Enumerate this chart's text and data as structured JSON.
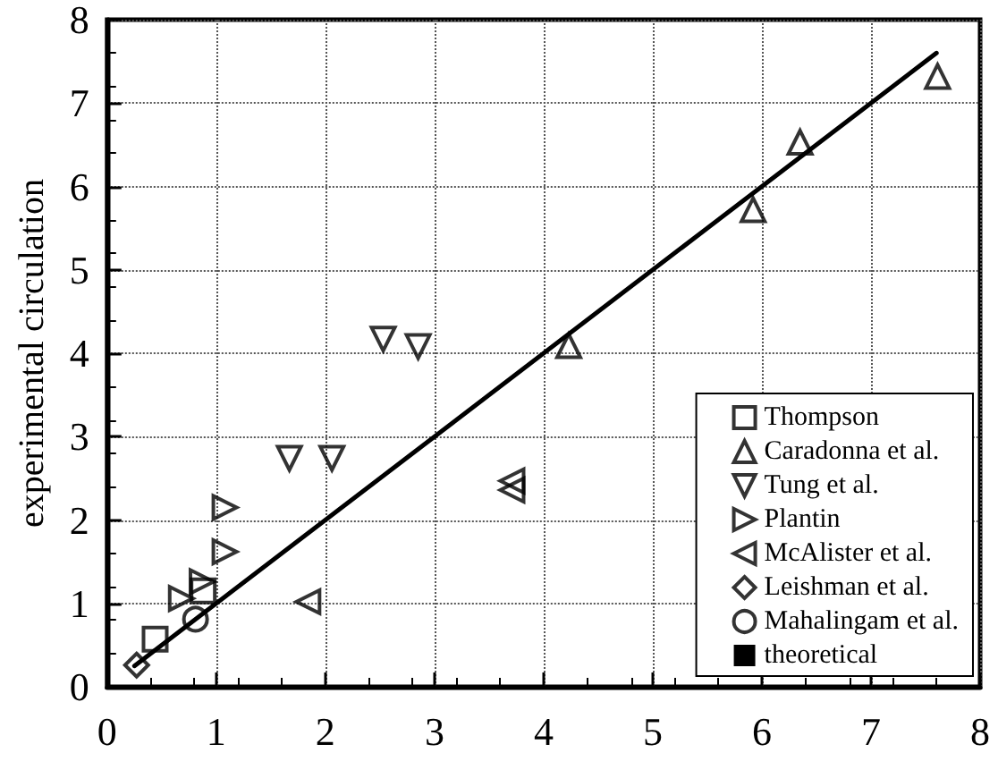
{
  "chart_data": {
    "type": "scatter",
    "ylabel": "experimental circulation",
    "xlim": [
      0,
      8
    ],
    "ylim": [
      0,
      8
    ],
    "xticks": [
      0,
      1,
      2,
      3,
      4,
      5,
      6,
      7,
      8
    ],
    "yticks": [
      0,
      1,
      2,
      3,
      4,
      5,
      6,
      7,
      8
    ],
    "grid": true,
    "legend": "bottom right",
    "series": [
      {
        "name": "Thompson",
        "color": "#000000",
        "marker": "square",
        "x": [
          0.44,
          0.88
        ],
        "values": [
          0.57,
          1.15
        ]
      },
      {
        "name": "Caradonna et al.",
        "color": "#000000",
        "marker": "triangle",
        "x": [
          4.23,
          5.92,
          6.35,
          7.61
        ],
        "values": [
          4.09,
          5.72,
          6.53,
          7.32
        ]
      },
      {
        "name": "Tung et al.",
        "color": "#000000",
        "marker": "triangle-down",
        "x": [
          1.67,
          2.06,
          2.53,
          2.85
        ],
        "values": [
          2.74,
          2.74,
          4.17,
          4.08
        ]
      },
      {
        "name": "Plantin",
        "color": "#000000",
        "marker": "triangle-right",
        "x": [
          1.08,
          1.08,
          0.68,
          0.87
        ],
        "values": [
          2.15,
          1.62,
          1.06,
          1.26
        ]
      },
      {
        "name": "McAlister et al.",
        "color": "#000000",
        "marker": "triangle-left",
        "x": [
          1.84,
          3.71,
          3.71
        ],
        "values": [
          1.02,
          2.47,
          2.36
        ]
      },
      {
        "name": "Leishman et al.",
        "color": "#000000",
        "marker": "diamond",
        "x": [
          0.27
        ],
        "values": [
          0.26
        ]
      },
      {
        "name": "Mahalingam et al.",
        "color": "#000000",
        "marker": "circle",
        "x": [
          0.81
        ],
        "values": [
          0.81
        ]
      },
      {
        "name": "theoretical",
        "type": "line",
        "color": "#000000",
        "marker": "none",
        "line_style": "solid",
        "x": [
          0.25,
          7.6
        ],
        "values": [
          0.25,
          7.6
        ]
      }
    ]
  }
}
